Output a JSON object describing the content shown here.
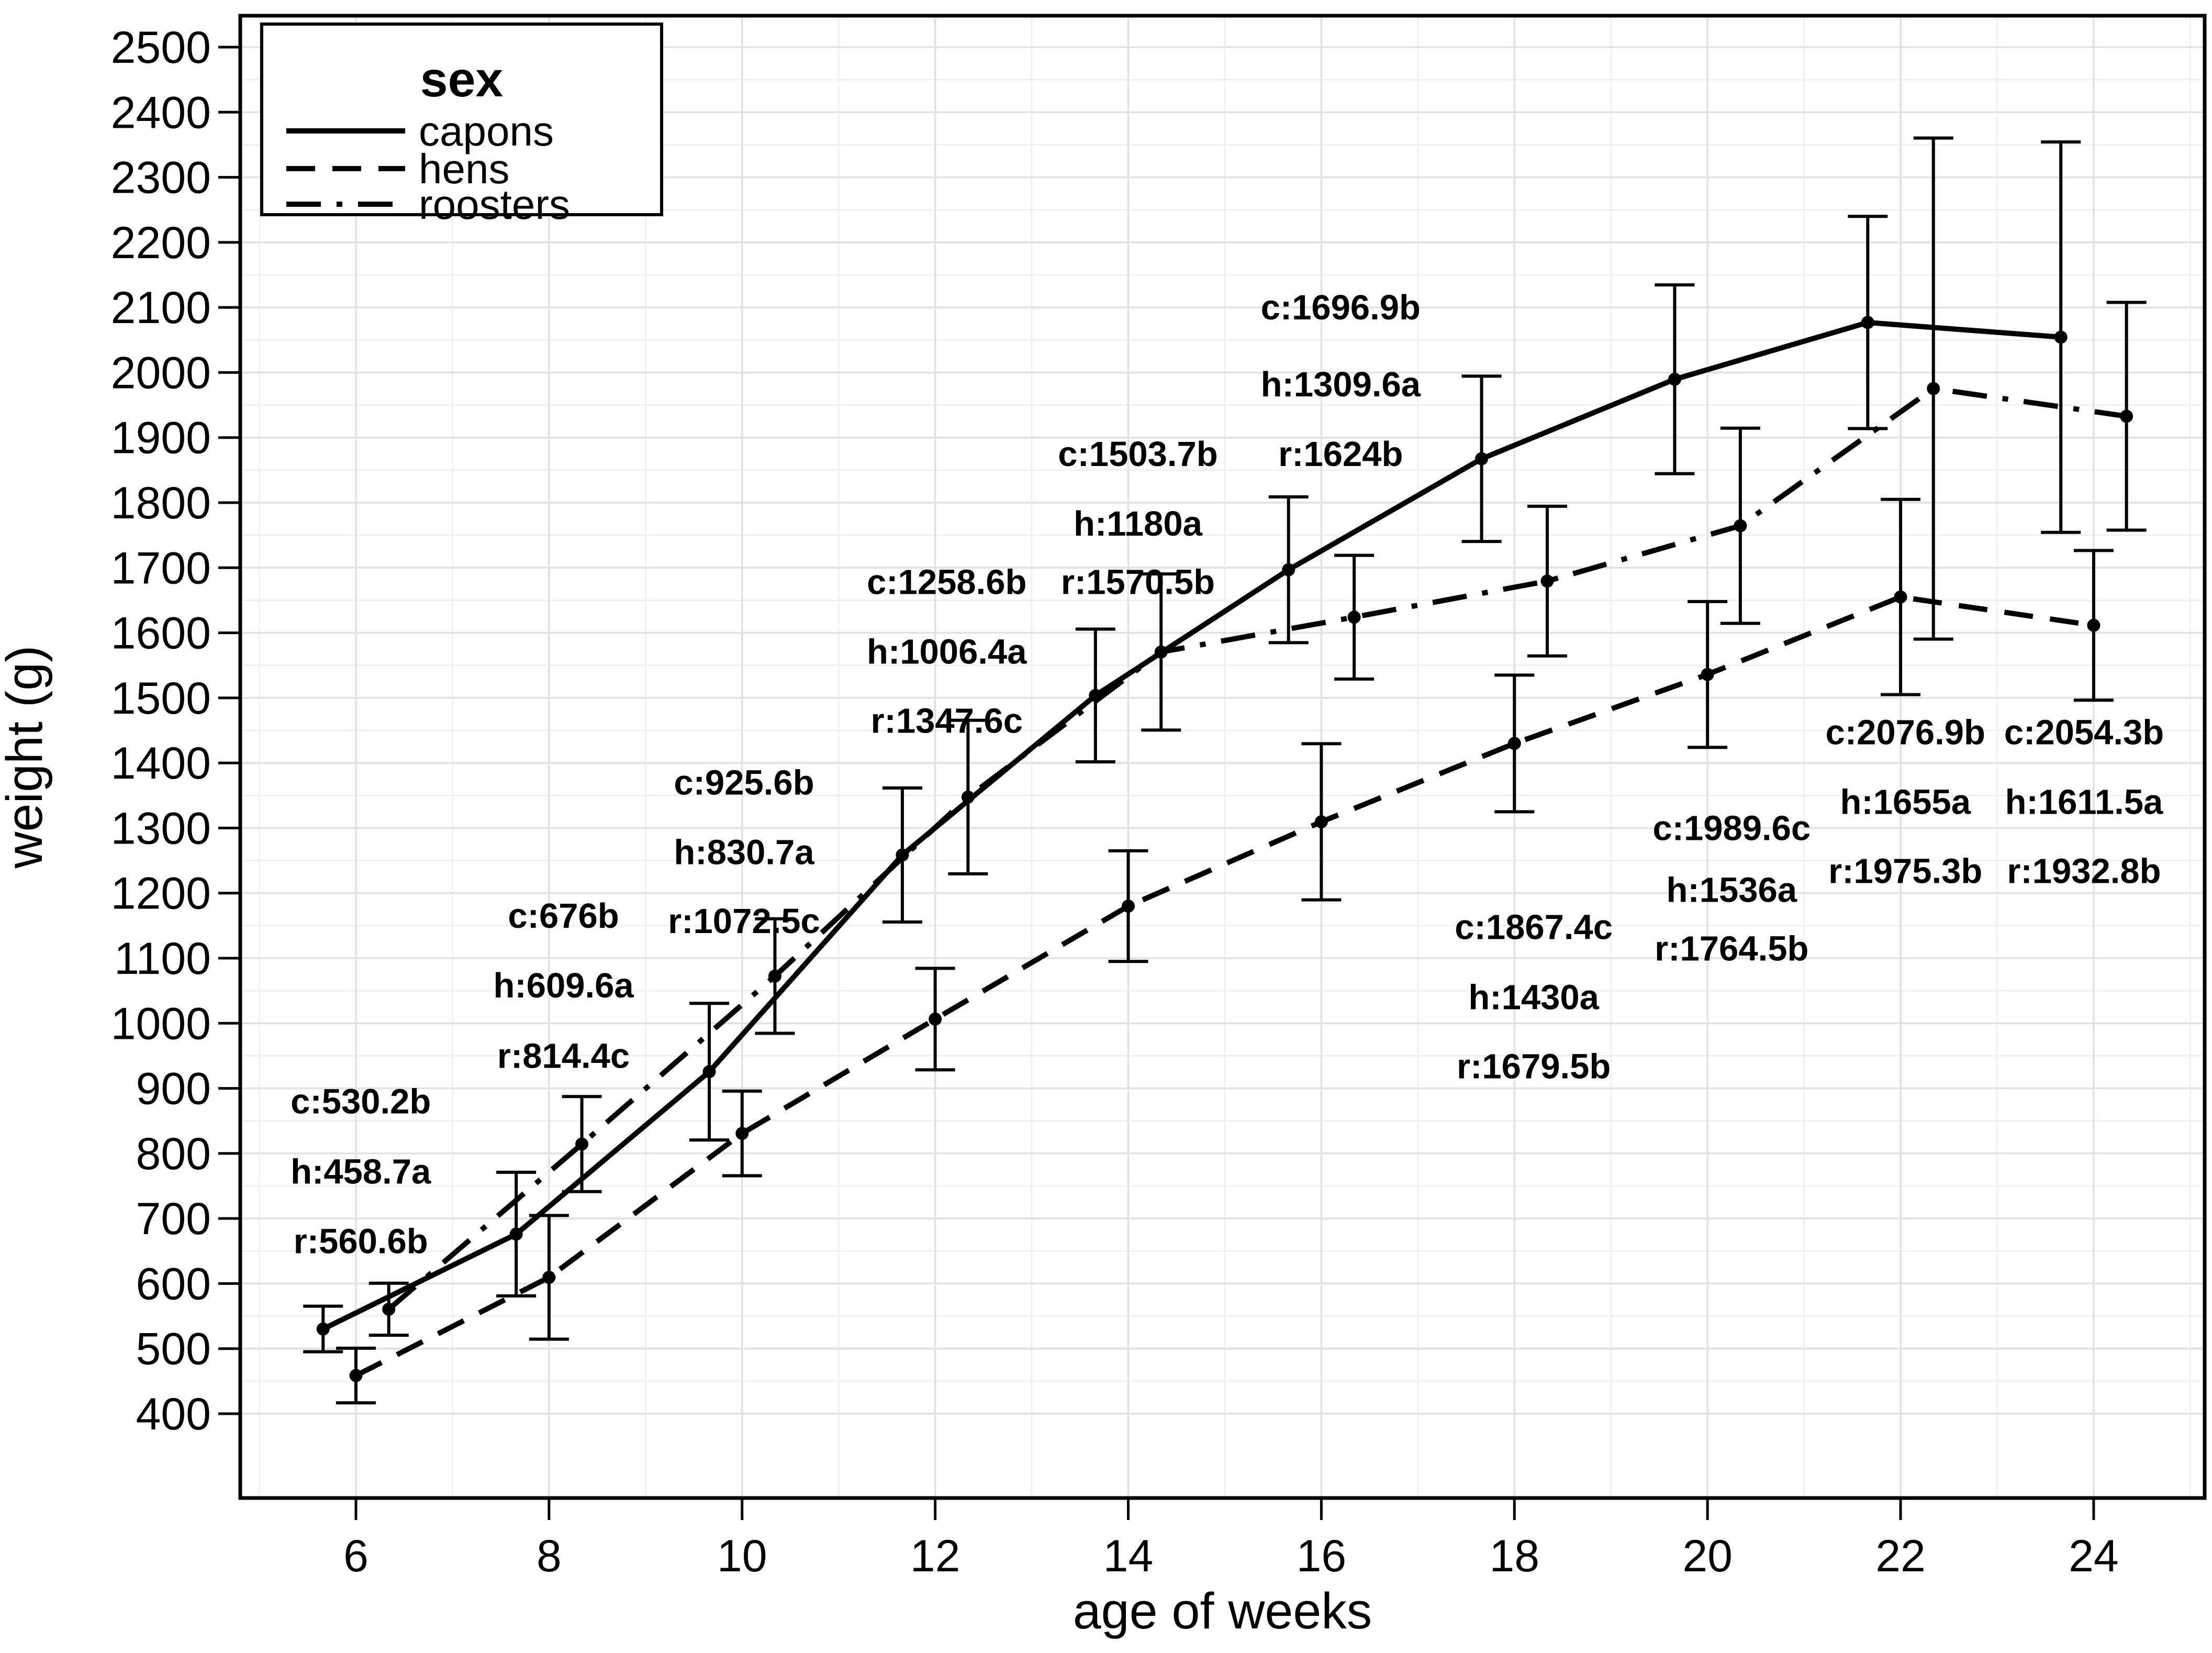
{
  "figure": {
    "background": "#ffffff",
    "panel_background": "#ffffff",
    "panel_border_color": "#000000",
    "grid_major_color": "#e2e2e2",
    "grid_minor_color": "#efefef",
    "line_color": "#000000",
    "text_color": "#000000"
  },
  "chart_data": {
    "type": "line",
    "title": "",
    "xlabel": "age of weeks",
    "ylabel": "weight (g)",
    "x_ticks": [
      6,
      8,
      10,
      12,
      14,
      16,
      18,
      20,
      22,
      24
    ],
    "y_ticks": [
      400,
      500,
      600,
      700,
      800,
      900,
      1000,
      1100,
      1200,
      1300,
      1400,
      1500,
      1600,
      1700,
      1800,
      1900,
      2000,
      2100,
      2200,
      2300,
      2400,
      2500
    ],
    "xlim": [
      4.8,
      25.15
    ],
    "ylim": [
      270,
      2548
    ],
    "grid": "major+minor",
    "error_bars": "mean ± estimated whisker (read from figure)",
    "legend": {
      "title": "sex",
      "position": "top-left-inside",
      "entries": [
        {
          "label": "capons",
          "line": "solid"
        },
        {
          "label": "hens",
          "line": "dashed"
        },
        {
          "label": "roosters",
          "line": "dashdot"
        }
      ]
    },
    "x": [
      6,
      8,
      10,
      12,
      14,
      16,
      18,
      20,
      22,
      24
    ],
    "series": [
      {
        "name": "capons",
        "line": "solid",
        "x_offset": -0.34,
        "values": [
          530.2,
          676,
          925.6,
          1258.6,
          1503.7,
          1696.9,
          1867.4,
          1989.6,
          2076.9,
          2054.3
        ],
        "err": [
          35,
          95,
          105,
          103,
          102,
          112,
          127,
          145,
          163,
          300
        ]
      },
      {
        "name": "hens",
        "line": "dashed",
        "x_offset": 0,
        "values": [
          458.7,
          609.6,
          830.7,
          1006.4,
          1180,
          1309.6,
          1430,
          1536,
          1655,
          1611.5
        ],
        "err": [
          42,
          95,
          65,
          78,
          85,
          120,
          105,
          112,
          150,
          115
        ]
      },
      {
        "name": "roosters",
        "line": "dashdot",
        "x_offset": 0.34,
        "values": [
          560.6,
          814.4,
          1072.5,
          1347.6,
          1570.5,
          1624,
          1679.5,
          1764.5,
          1975.3,
          1932.8
        ],
        "err": [
          40,
          73,
          88,
          118,
          120,
          95,
          115,
          150,
          385,
          175
        ]
      }
    ],
    "annotations": [
      {
        "week": 6,
        "x": 6.05,
        "entries": [
          {
            "text": "c:530.2b",
            "y": 880
          },
          {
            "text": "h:458.7a",
            "y": 772
          },
          {
            "text": "r:560.6b",
            "y": 665
          }
        ]
      },
      {
        "week": 8,
        "x": 8.15,
        "entries": [
          {
            "text": "c:676b",
            "y": 1165
          },
          {
            "text": "h:609.6a",
            "y": 1058
          },
          {
            "text": "r:814.4c",
            "y": 950
          }
        ]
      },
      {
        "week": 10,
        "x": 10.02,
        "entries": [
          {
            "text": "c:925.6b",
            "y": 1370
          },
          {
            "text": "h:830.7a",
            "y": 1263
          },
          {
            "text": "r:1072.5c",
            "y": 1157
          }
        ]
      },
      {
        "week": 12,
        "x": 12.12,
        "entries": [
          {
            "text": "c:1258.6b",
            "y": 1678
          },
          {
            "text": "h:1006.4a",
            "y": 1571
          },
          {
            "text": "r:1347.6c",
            "y": 1465
          }
        ]
      },
      {
        "week": 14,
        "x": 14.1,
        "entries": [
          {
            "text": "c:1503.7b",
            "y": 1875
          },
          {
            "text": "h:1180a",
            "y": 1768
          },
          {
            "text": "r:1570.5b",
            "y": 1678
          }
        ]
      },
      {
        "week": 16,
        "x": 16.2,
        "entries": [
          {
            "text": "c:1696.9b",
            "y": 2100
          },
          {
            "text": "h:1309.6a",
            "y": 1982
          },
          {
            "text": "r:1624b",
            "y": 1875
          }
        ]
      },
      {
        "week": 18,
        "x": 18.2,
        "entries": [
          {
            "text": "c:1867.4c",
            "y": 1148
          },
          {
            "text": "h:1430a",
            "y": 1040
          },
          {
            "text": "r:1679.5b",
            "y": 934
          }
        ]
      },
      {
        "week": 20,
        "x": 20.25,
        "entries": [
          {
            "text": "c:1989.6c",
            "y": 1300
          },
          {
            "text": "h:1536a",
            "y": 1205
          },
          {
            "text": "r:1764.5b",
            "y": 1115
          }
        ]
      },
      {
        "week": 22,
        "x": 22.05,
        "entries": [
          {
            "text": "c:2076.9b",
            "y": 1447
          },
          {
            "text": "h:1655a",
            "y": 1340
          },
          {
            "text": "r:1975.3b",
            "y": 1234
          }
        ]
      },
      {
        "week": 24,
        "x": 23.9,
        "entries": [
          {
            "text": "c:2054.3b",
            "y": 1447
          },
          {
            "text": "h:1611.5a",
            "y": 1340
          },
          {
            "text": "r:1932.8b",
            "y": 1234
          }
        ]
      }
    ]
  }
}
